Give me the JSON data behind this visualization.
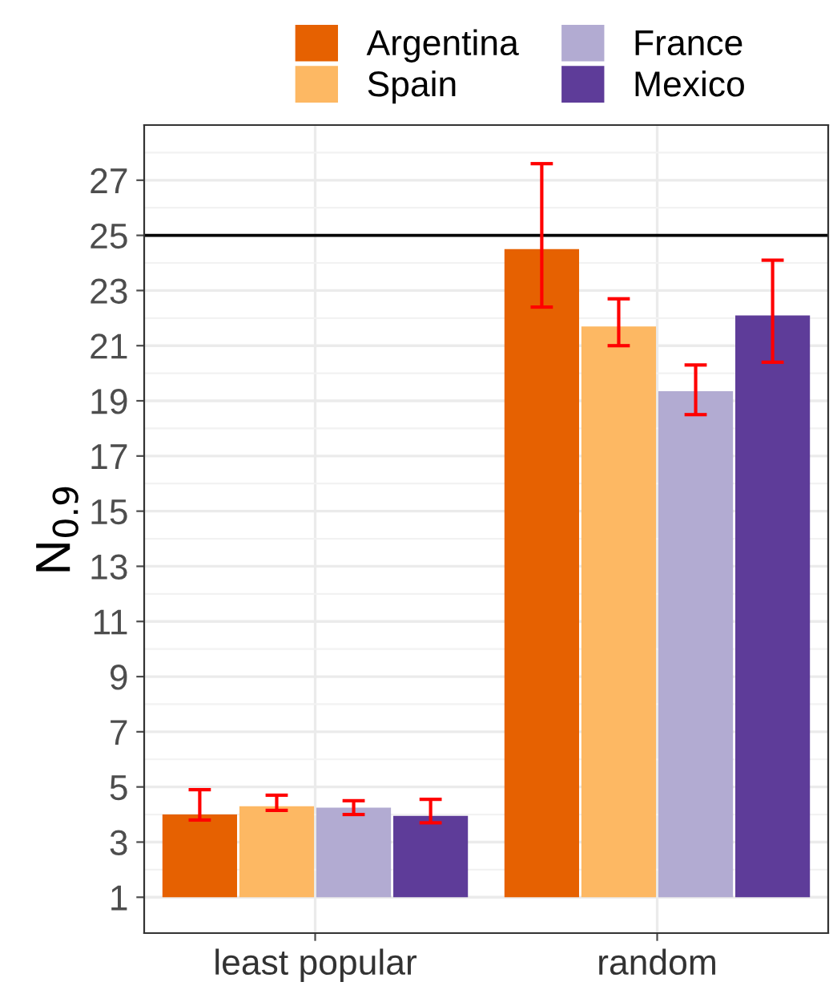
{
  "chart_data": {
    "type": "bar",
    "ylabel": "N$_{0.9}$",
    "categories": [
      "least popular",
      "random"
    ],
    "series": [
      {
        "name": "Argentina",
        "color": "#e66101",
        "base": [
          1,
          1
        ],
        "values": [
          3.0,
          23.5
        ],
        "errors": [
          [
            3.8,
            4.9
          ],
          [
            22.4,
            27.6
          ]
        ]
      },
      {
        "name": "Spain",
        "color": "#fdb863",
        "base": [
          1,
          1
        ],
        "values": [
          3.3,
          20.7
        ],
        "errors": [
          [
            4.15,
            4.7
          ],
          [
            21.0,
            22.7
          ]
        ]
      },
      {
        "name": "France",
        "color": "#b2abd2",
        "base": [
          1,
          1
        ],
        "values": [
          3.25,
          18.35
        ],
        "errors": [
          [
            4.0,
            4.5
          ],
          [
            18.5,
            20.3
          ]
        ]
      },
      {
        "name": "Mexico",
        "color": "#5e3c99",
        "base": [
          1,
          1
        ],
        "values": [
          2.95,
          21.1
        ],
        "errors": [
          [
            3.7,
            4.55
          ],
          [
            20.4,
            24.1
          ]
        ]
      }
    ],
    "ylim": [
      -0.3,
      29
    ],
    "yticks": [
      1,
      3,
      5,
      7,
      9,
      11,
      13,
      15,
      17,
      19,
      21,
      23,
      25,
      27
    ],
    "ref_lines": [
      {
        "axis": "y",
        "value": 25,
        "color": "#000000"
      }
    ],
    "grid": true,
    "legend": "top"
  }
}
